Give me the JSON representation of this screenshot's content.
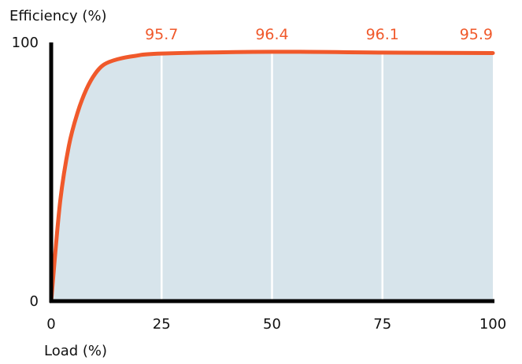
{
  "chart_data": {
    "type": "area",
    "title": "",
    "xlabel": "Load (%)",
    "ylabel": "Efficiency (%)",
    "xlim": [
      0,
      100
    ],
    "ylim": [
      0,
      100
    ],
    "x_ticks": [
      "0",
      "25",
      "50",
      "75",
      "100"
    ],
    "y_ticks": [
      "0",
      "100"
    ],
    "grid": "vertical lines at 25, 50, 75",
    "series": [
      {
        "x": [
          0,
          2,
          4,
          6,
          8,
          10,
          12,
          15,
          19,
          25,
          50,
          75,
          100
        ],
        "y": [
          0,
          38,
          60,
          73,
          82,
          88,
          91.5,
          93.5,
          94.8,
          95.7,
          96.4,
          96.1,
          95.9
        ]
      }
    ],
    "data_labels": [
      {
        "x": 25,
        "text": "95.7"
      },
      {
        "x": 50,
        "text": "96.4"
      },
      {
        "x": 75,
        "text": "96.1"
      },
      {
        "x": 100,
        "text": "95.9"
      }
    ],
    "colors": {
      "line": "#f0592b",
      "fill": "#d7e4eb",
      "grid": "#ffffff",
      "axis": "#000000",
      "label": "#f0592b"
    }
  }
}
